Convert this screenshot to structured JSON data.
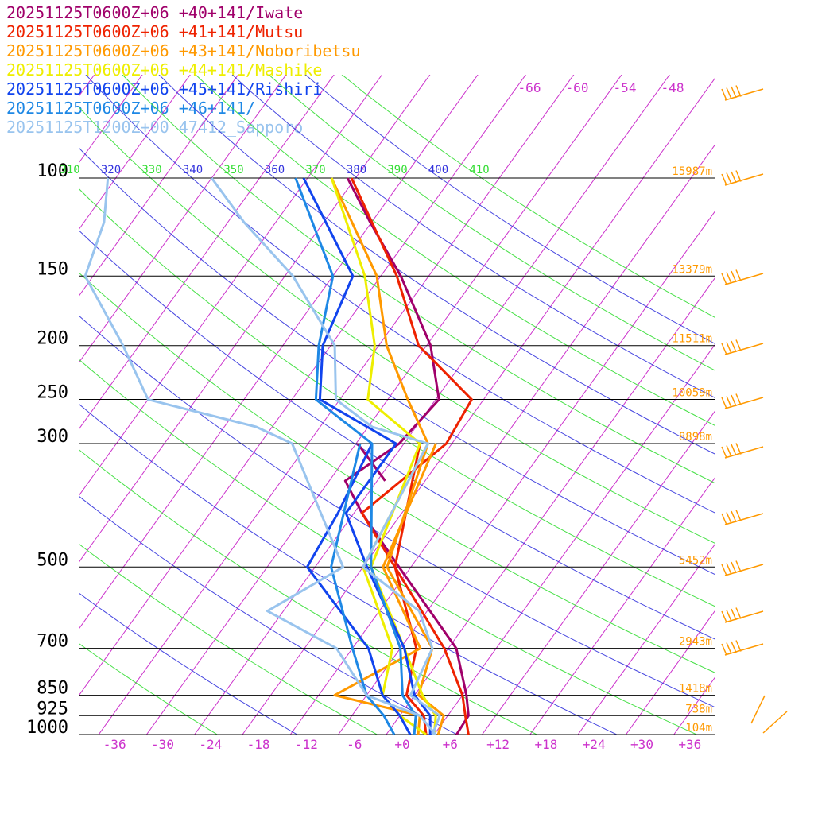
{
  "chart_data": {
    "type": "line",
    "title": "",
    "xlabel": "",
    "ylabel": "",
    "xlim": [
      -40,
      38
    ],
    "ylim": [
      1000,
      100
    ],
    "y_scale": "log",
    "pressure_levels": [
      {
        "p": 100,
        "label": "100",
        "height": "15987m"
      },
      {
        "p": 150,
        "label": "150",
        "height": "13379m"
      },
      {
        "p": 200,
        "label": "200",
        "height": "11511m"
      },
      {
        "p": 250,
        "label": "250",
        "height": "10059m"
      },
      {
        "p": 300,
        "label": "300",
        "height": "8898m"
      },
      {
        "p": 500,
        "label": "500",
        "height": "5452m"
      },
      {
        "p": 700,
        "label": "700",
        "height": "2943m"
      },
      {
        "p": 850,
        "label": "850",
        "height": "1418m"
      },
      {
        "p": 925,
        "label": "925",
        "height": "738m"
      },
      {
        "p": 1000,
        "label": "1000",
        "height": "104m"
      }
    ],
    "x_ticks": [
      "-36",
      "-30",
      "-24",
      "-18",
      "-12",
      "-6",
      "+0",
      "+6",
      "+12",
      "+18",
      "+24",
      "+30",
      "+36"
    ],
    "x_tick_values": [
      -36,
      -30,
      -24,
      -18,
      -12,
      -6,
      0,
      6,
      12,
      18,
      24,
      30,
      36
    ],
    "isotherm_labels_top": [
      "-66",
      "-60",
      "-54",
      "-48"
    ],
    "theta_labels": [
      "310",
      "320",
      "330",
      "340",
      "350",
      "360",
      "370",
      "380",
      "390",
      "400",
      "410"
    ],
    "series": [
      {
        "name": "20251125T0600Z+06 +40+141/Iwate",
        "color": "#a0006a",
        "temp": [
          [
            1000,
            6.8
          ],
          [
            925,
            6.6
          ],
          [
            850,
            4.5
          ],
          [
            700,
            -1.0
          ],
          [
            500,
            -15.5
          ],
          [
            400,
            -25
          ],
          [
            350,
            -30.0
          ],
          [
            300,
            -26.6
          ],
          [
            250,
            -25.6
          ],
          [
            200,
            -31.5
          ],
          [
            150,
            -41.5
          ],
          [
            120,
            -50.2
          ],
          [
            100,
            -57.0
          ]
        ],
        "dewp": [
          [
            300,
            -31.8
          ],
          [
            350,
            -25.0
          ]
        ]
      },
      {
        "name": "20251125T0600Z+06 +41+141/Mutsu",
        "color": "#ee2200",
        "temp": [
          [
            1000,
            8.3
          ],
          [
            925,
            6.2
          ],
          [
            850,
            4.0
          ],
          [
            700,
            -2.5
          ],
          [
            500,
            -16.0
          ],
          [
            400,
            -25
          ],
          [
            300,
            -20.7
          ],
          [
            250,
            -21.5
          ],
          [
            200,
            -33.0
          ],
          [
            150,
            -42.0
          ],
          [
            100,
            -56.5
          ]
        ],
        "dewp": [
          [
            1000,
            3.0
          ],
          [
            925,
            1.0
          ],
          [
            850,
            -3.0
          ],
          [
            700,
            -6.0
          ],
          [
            500,
            -16.0
          ],
          [
            300,
            -24.0
          ]
        ]
      },
      {
        "name": "20251125T0600Z+06 +43+141/Noboribetsu",
        "color": "#ff9900",
        "temp": [
          [
            1000,
            4.5
          ],
          [
            925,
            3.5
          ],
          [
            850,
            -1.5
          ],
          [
            700,
            -4.0
          ],
          [
            500,
            -17.0
          ],
          [
            300,
            -23.0
          ],
          [
            250,
            -29.5
          ],
          [
            200,
            -37.0
          ],
          [
            150,
            -44.5
          ],
          [
            100,
            -59.0
          ]
        ],
        "dewp": [
          [
            1000,
            2.0
          ],
          [
            925,
            0.5
          ],
          [
            850,
            -12.0
          ],
          [
            700,
            -5.5
          ],
          [
            500,
            -17.5
          ],
          [
            300,
            -22.0
          ]
        ]
      },
      {
        "name": "20251125T0600Z+06 +44+141/Mashike",
        "color": "#eeee00",
        "temp": [
          [
            1000,
            4.0
          ],
          [
            925,
            2.5
          ],
          [
            850,
            -1.0
          ],
          [
            700,
            -7.5
          ],
          [
            500,
            -19.0
          ],
          [
            300,
            -24.0
          ],
          [
            250,
            -34.5
          ],
          [
            200,
            -38.5
          ],
          [
            150,
            -46.0
          ],
          [
            100,
            -59.0
          ]
        ],
        "dewp": [
          [
            1000,
            3.0
          ],
          [
            925,
            -2.0
          ],
          [
            850,
            -6.0
          ],
          [
            700,
            -9.0
          ],
          [
            500,
            -20.0
          ],
          [
            300,
            -23.0
          ]
        ]
      },
      {
        "name": "20251125T0600Z+06 +45+141/Rishiri",
        "color": "#1144ee",
        "temp": [
          [
            1000,
            3.5
          ],
          [
            925,
            1.8
          ],
          [
            850,
            -2.0
          ],
          [
            700,
            -7.5
          ],
          [
            500,
            -19.5
          ],
          [
            400,
            -27.0
          ],
          [
            300,
            -27.0
          ],
          [
            250,
            -40.5
          ],
          [
            200,
            -45.0
          ],
          [
            150,
            -47.5
          ],
          [
            100,
            -62.5
          ]
        ],
        "dewp": [
          [
            1000,
            1.0
          ],
          [
            925,
            -2.0
          ],
          [
            850,
            -6.0
          ],
          [
            700,
            -12.0
          ],
          [
            500,
            -27.0
          ],
          [
            400,
            -28.0
          ],
          [
            300,
            -30.0
          ]
        ]
      },
      {
        "name": "20251125T0600Z+06 +46+141/",
        "color": "#1e88e5",
        "temp": [
          [
            1000,
            1.5
          ],
          [
            925,
            0.0
          ],
          [
            850,
            -3.5
          ],
          [
            700,
            -8.0
          ],
          [
            500,
            -19.0
          ],
          [
            300,
            -30.0
          ],
          [
            250,
            -41.0
          ],
          [
            200,
            -45.5
          ],
          [
            150,
            -50.0
          ],
          [
            100,
            -63.5
          ]
        ],
        "dewp": [
          [
            1000,
            -1.0
          ],
          [
            925,
            -4.0
          ],
          [
            850,
            -8.0
          ],
          [
            700,
            -14.0
          ],
          [
            500,
            -24.0
          ],
          [
            300,
            -31.5
          ]
        ]
      },
      {
        "name": "20251125T1200Z+00 47412_Sapporo",
        "color": "#99c4ee",
        "temp": [
          [
            1000,
            3.8
          ],
          [
            925,
            3.0
          ],
          [
            850,
            -2.5
          ],
          [
            700,
            -4.0
          ],
          [
            600,
            -9.0
          ],
          [
            500,
            -20.0
          ],
          [
            300,
            -23.0
          ],
          [
            280,
            -31.5
          ],
          [
            250,
            -38.5
          ],
          [
            200,
            -43.5
          ],
          [
            150,
            -55.0
          ],
          [
            120,
            -66.0
          ],
          [
            100,
            -74.0
          ]
        ],
        "dewp": [
          [
            1000,
            4.2
          ],
          [
            925,
            0.5
          ],
          [
            850,
            -8.0
          ],
          [
            700,
            -16.0
          ],
          [
            600,
            -28.0
          ],
          [
            500,
            -22.5
          ],
          [
            300,
            -40.0
          ],
          [
            280,
            -46.0
          ],
          [
            250,
            -62.0
          ],
          [
            200,
            -70.0
          ],
          [
            150,
            -81.0
          ],
          [
            120,
            -83.5
          ],
          [
            100,
            -87.0
          ]
        ]
      }
    ],
    "grid": true,
    "legend": "top-left"
  }
}
